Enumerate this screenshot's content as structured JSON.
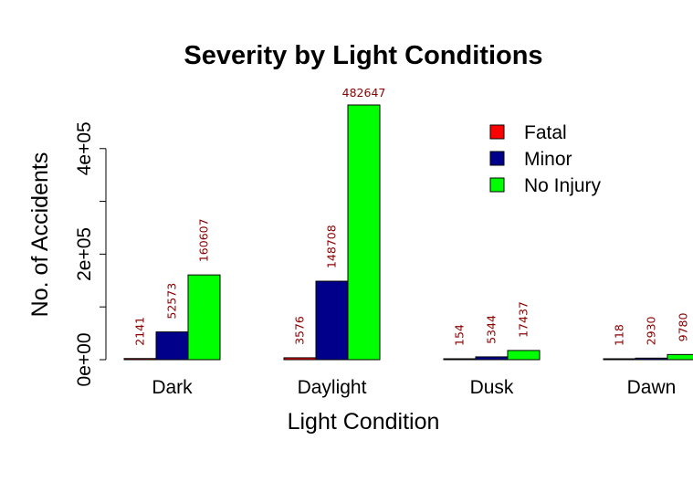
{
  "chart_data": {
    "type": "bar",
    "title": "Severity by Light Conditions",
    "xlabel": "Light Condition",
    "ylabel": "No. of Accidents",
    "categories": [
      "Dark",
      "Daylight",
      "Dusk",
      "Dawn"
    ],
    "series": [
      {
        "name": "Fatal",
        "color": "#ff0000",
        "values": [
          2141,
          3576,
          154,
          118
        ]
      },
      {
        "name": "Minor",
        "color": "#00008b",
        "values": [
          52573,
          148708,
          5344,
          2930
        ]
      },
      {
        "name": "No Injury",
        "color": "#00ff00",
        "values": [
          160607,
          482647,
          17437,
          9780
        ]
      }
    ],
    "ylim": [
      0,
      482647
    ],
    "yticks": [
      0,
      100000,
      200000,
      300000,
      400000
    ],
    "ytick_labels": [
      "0e+00",
      "",
      "2e+05",
      "",
      "4e+05"
    ],
    "grid": false,
    "legend_position": "top-right",
    "data_label_color": "#8b0000"
  }
}
